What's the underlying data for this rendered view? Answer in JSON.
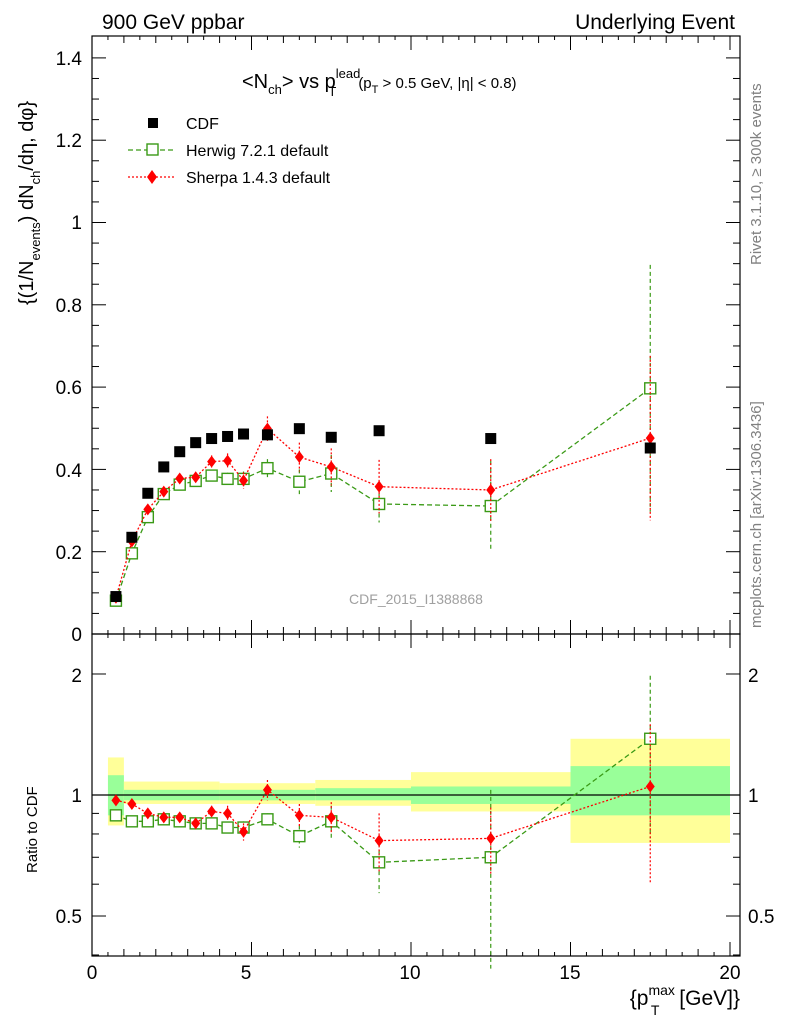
{
  "header": {
    "left": "900 GeV ppbar",
    "right": "Underlying Event"
  },
  "side": {
    "rivet": "Rivet 3.1.10, ≥ 300k events",
    "mcplots": "mcplots.cern.ch [arXiv:1306.3436]"
  },
  "plot_title": {
    "main": "<N",
    "main_sub": "ch",
    "main_mid": "> vs p",
    "main_sup": "lead",
    "main_sub2": "T",
    "cut": "(p",
    "cut_sub": "T",
    "cut_rest": " > 0.5 GeV, |η| < 0.8)"
  },
  "watermark": "CDF_2015_I1388868",
  "axes": {
    "ylabel_main": "{(1/N",
    "ylabel_sub1": "events",
    "ylabel_mid": ") dN",
    "ylabel_sub2": "ch",
    "ylabel_end": "/dη, dφ}",
    "ylabel_ratio": "Ratio to CDF",
    "xlabel_main": "{p",
    "xlabel_sup": "max",
    "xlabel_sub": "T",
    "xlabel_end": " [GeV]}",
    "main_yticks": [
      "0",
      "0.2",
      "0.4",
      "0.6",
      "0.8",
      "1",
      "1.2",
      "1.4"
    ],
    "ratio_yticks": [
      "0.5",
      "1",
      "2"
    ],
    "xticks": [
      "0",
      "5",
      "10",
      "15",
      "20"
    ]
  },
  "colors": {
    "cdf": "#000000",
    "herwig": "#3a9a16",
    "sherpa": "#ff0000",
    "band_inner": "#99ff99",
    "band_outer": "#ffff99"
  },
  "chart_data": [
    {
      "type": "scatter",
      "title": "<Nch> vs pT lead (pT > 0.5 GeV, |η| < 0.8)",
      "xlabel": "{pT max [GeV]}",
      "ylabel": "{(1/Nevents) dNch/dη, dφ}",
      "xlim": [
        0,
        20
      ],
      "ylim": [
        0,
        1.45
      ],
      "legend": "top-left",
      "series": [
        {
          "name": "CDF",
          "x": [
            0.75,
            1.25,
            1.75,
            2.25,
            2.75,
            3.25,
            3.75,
            4.25,
            4.75,
            5.5,
            6.5,
            7.5,
            9.0,
            12.5,
            17.5
          ],
          "y": [
            0.091,
            0.235,
            0.342,
            0.406,
            0.443,
            0.465,
            0.475,
            0.48,
            0.486,
            0.484,
            0.499,
            0.478,
            0.494,
            0.475,
            0.452
          ]
        },
        {
          "name": "Herwig 7.2.1 default",
          "x": [
            0.75,
            1.25,
            1.75,
            2.25,
            2.75,
            3.25,
            3.75,
            4.25,
            4.75,
            5.5,
            6.5,
            7.5,
            9.0,
            12.5,
            17.5
          ],
          "y": [
            0.081,
            0.196,
            0.284,
            0.34,
            0.363,
            0.372,
            0.385,
            0.377,
            0.377,
            0.403,
            0.37,
            0.39,
            0.316,
            0.311,
            0.597
          ],
          "err": [
            0.004,
            0.006,
            0.008,
            0.01,
            0.01,
            0.012,
            0.012,
            0.015,
            0.018,
            0.022,
            0.03,
            0.045,
            0.045,
            0.11,
            0.3
          ]
        },
        {
          "name": "Sherpa 1.4.3 default",
          "x": [
            0.75,
            1.25,
            1.75,
            2.25,
            2.75,
            3.25,
            3.75,
            4.25,
            4.75,
            5.5,
            6.5,
            7.5,
            9.0,
            12.5,
            17.5
          ],
          "y": [
            0.088,
            0.225,
            0.303,
            0.346,
            0.378,
            0.381,
            0.419,
            0.421,
            0.373,
            0.499,
            0.43,
            0.406,
            0.358,
            0.35,
            0.476
          ],
          "err": [
            0.004,
            0.006,
            0.008,
            0.01,
            0.01,
            0.012,
            0.015,
            0.018,
            0.02,
            0.03,
            0.035,
            0.045,
            0.065,
            0.075,
            0.2
          ]
        }
      ]
    },
    {
      "type": "scatter",
      "title": "",
      "xlabel": "{pT max [GeV]}",
      "ylabel": "Ratio to CDF",
      "xlim": [
        0,
        20
      ],
      "ylim": [
        0.4,
        2.4
      ],
      "yscale": "log",
      "reference_line": 1,
      "bands": [
        {
          "x0": 0.5,
          "x1": 1.0,
          "inner": [
            0.89,
            1.12
          ],
          "outer": [
            0.84,
            1.24
          ]
        },
        {
          "x0": 1.0,
          "x1": 4.0,
          "inner": [
            0.97,
            1.03
          ],
          "outer": [
            0.95,
            1.08
          ]
        },
        {
          "x0": 4.0,
          "x1": 7.0,
          "inner": [
            0.97,
            1.03
          ],
          "outer": [
            0.95,
            1.07
          ]
        },
        {
          "x0": 7.0,
          "x1": 10.0,
          "inner": [
            0.97,
            1.04
          ],
          "outer": [
            0.94,
            1.09
          ]
        },
        {
          "x0": 10.0,
          "x1": 15.0,
          "inner": [
            0.95,
            1.05
          ],
          "outer": [
            0.91,
            1.14
          ]
        },
        {
          "x0": 15.0,
          "x1": 20.0,
          "inner": [
            0.89,
            1.18
          ],
          "outer": [
            0.76,
            1.38
          ]
        }
      ],
      "series": [
        {
          "name": "Herwig 7.2.1 default",
          "x": [
            0.75,
            1.25,
            1.75,
            2.25,
            2.75,
            3.25,
            3.75,
            4.25,
            4.75,
            5.5,
            6.5,
            7.5,
            9.0,
            12.5,
            17.5
          ],
          "y": [
            0.89,
            0.86,
            0.86,
            0.87,
            0.86,
            0.85,
            0.85,
            0.83,
            0.83,
            0.87,
            0.79,
            0.86,
            0.68,
            0.7,
            1.38
          ],
          "err": [
            0.02,
            0.02,
            0.02,
            0.02,
            0.02,
            0.02,
            0.02,
            0.02,
            0.03,
            0.03,
            0.05,
            0.08,
            0.11,
            0.33,
            0.6
          ]
        },
        {
          "name": "Sherpa 1.4.3 default",
          "x": [
            0.75,
            1.25,
            1.75,
            2.25,
            2.75,
            3.25,
            3.75,
            4.25,
            4.75,
            5.5,
            6.5,
            7.5,
            9.0,
            12.5,
            17.5
          ],
          "y": [
            0.97,
            0.95,
            0.9,
            0.88,
            0.88,
            0.85,
            0.91,
            0.9,
            0.81,
            1.03,
            0.89,
            0.88,
            0.77,
            0.78,
            1.05
          ],
          "err": [
            0.02,
            0.02,
            0.02,
            0.02,
            0.02,
            0.02,
            0.03,
            0.04,
            0.04,
            0.06,
            0.06,
            0.08,
            0.13,
            0.15,
            0.45
          ]
        }
      ]
    }
  ]
}
